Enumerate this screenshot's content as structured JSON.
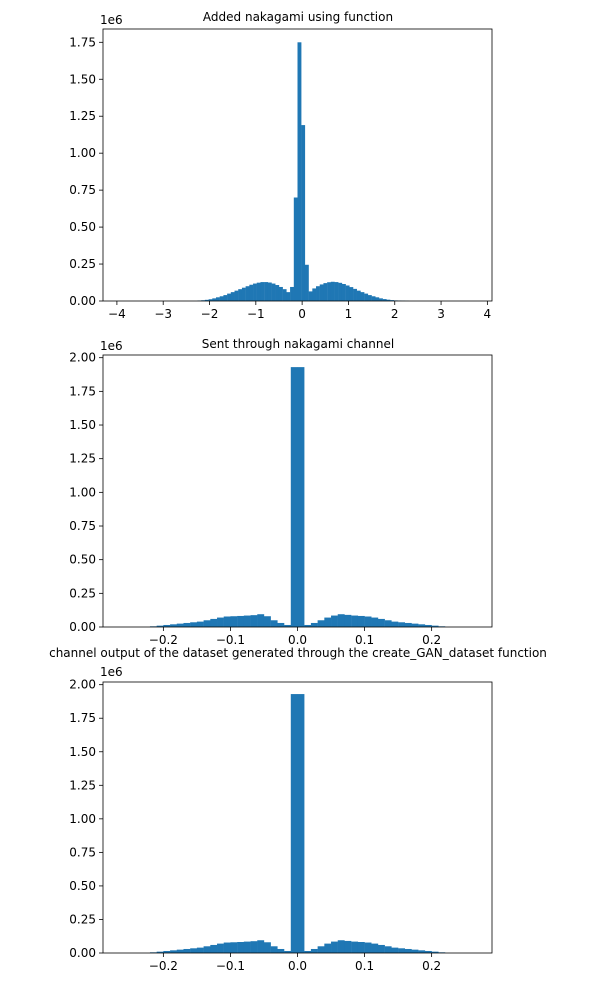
{
  "chart_data": [
    {
      "type": "histogram",
      "title": "Added nakagami using function",
      "xlabel": "",
      "ylabel": "",
      "x_ticks": [
        "−4",
        "−3",
        "−2",
        "−1",
        "0",
        "1",
        "2",
        "3",
        "4"
      ],
      "x_tick_values": [
        -4,
        -3,
        -2,
        -1,
        0,
        1,
        2,
        3,
        4
      ],
      "y_ticks": [
        "0.00",
        "0.25",
        "0.50",
        "0.75",
        "1.00",
        "1.25",
        "1.50",
        "1.75"
      ],
      "y_tick_values": [
        0,
        0.25,
        0.5,
        0.75,
        1.0,
        1.25,
        1.5,
        1.75
      ],
      "y_scale_label": "1e6",
      "xlim": [
        -4.3,
        4.1
      ],
      "ylim": [
        0,
        1.84
      ],
      "bar_color": "#1f77b4",
      "bin_width": 0.08,
      "bins_x": [
        -2.22,
        -2.14,
        -2.06,
        -1.98,
        -1.9,
        -1.82,
        -1.74,
        -1.66,
        -1.58,
        -1.5,
        -1.42,
        -1.34,
        -1.26,
        -1.18,
        -1.1,
        -1.02,
        -0.94,
        -0.86,
        -0.78,
        -0.7,
        -0.62,
        -0.54,
        -0.46,
        -0.38,
        -0.3,
        -0.22,
        -0.14,
        -0.06,
        0.02,
        0.1,
        0.18,
        0.26,
        0.34,
        0.42,
        0.5,
        0.58,
        0.66,
        0.74,
        0.82,
        0.9,
        0.98,
        1.06,
        1.14,
        1.22,
        1.3,
        1.38,
        1.46,
        1.54,
        1.62,
        1.7,
        1.78,
        1.86,
        1.94,
        2.02,
        2.1,
        2.18,
        2.26
      ],
      "values": [
        0.003,
        0.005,
        0.008,
        0.012,
        0.018,
        0.025,
        0.032,
        0.04,
        0.05,
        0.06,
        0.07,
        0.08,
        0.09,
        0.1,
        0.11,
        0.118,
        0.124,
        0.128,
        0.128,
        0.125,
        0.118,
        0.108,
        0.095,
        0.08,
        0.06,
        0.095,
        0.7,
        1.75,
        1.19,
        0.245,
        0.065,
        0.085,
        0.1,
        0.112,
        0.121,
        0.127,
        0.13,
        0.128,
        0.123,
        0.115,
        0.105,
        0.094,
        0.082,
        0.07,
        0.06,
        0.05,
        0.04,
        0.032,
        0.025,
        0.018,
        0.013,
        0.009,
        0.006,
        0.004,
        0.003,
        0.002,
        0.001
      ]
    },
    {
      "type": "histogram",
      "title": "Sent through nakagami channel",
      "xlabel": "",
      "ylabel": "",
      "x_ticks": [
        "−0.2",
        "−0.1",
        "0.0",
        "0.1",
        "0.2"
      ],
      "x_tick_values": [
        -0.2,
        -0.1,
        0.0,
        0.1,
        0.2
      ],
      "y_ticks": [
        "0.00",
        "0.25",
        "0.50",
        "0.75",
        "1.00",
        "1.25",
        "1.50",
        "1.75",
        "2.00"
      ],
      "y_tick_values": [
        0,
        0.25,
        0.5,
        0.75,
        1.0,
        1.25,
        1.5,
        1.75,
        2.0
      ],
      "y_scale_label": "1e6",
      "xlim": [
        -0.29,
        0.29
      ],
      "ylim": [
        0,
        2.02
      ],
      "bar_color": "#1f77b4",
      "bin_width": 0.01,
      "bins_x": [
        -0.215,
        -0.205,
        -0.195,
        -0.185,
        -0.175,
        -0.165,
        -0.155,
        -0.145,
        -0.135,
        -0.125,
        -0.115,
        -0.105,
        -0.095,
        -0.085,
        -0.075,
        -0.065,
        -0.055,
        -0.045,
        -0.035,
        -0.025,
        -0.015,
        -0.005,
        0.005,
        0.015,
        0.025,
        0.035,
        0.045,
        0.055,
        0.065,
        0.075,
        0.085,
        0.095,
        0.105,
        0.115,
        0.125,
        0.135,
        0.145,
        0.155,
        0.165,
        0.175,
        0.185,
        0.195,
        0.205,
        0.215
      ],
      "values": [
        0.005,
        0.01,
        0.015,
        0.02,
        0.025,
        0.03,
        0.035,
        0.04,
        0.05,
        0.06,
        0.07,
        0.078,
        0.08,
        0.082,
        0.085,
        0.088,
        0.095,
        0.08,
        0.05,
        0.03,
        0.015,
        1.93,
        1.93,
        0.015,
        0.03,
        0.05,
        0.07,
        0.085,
        0.095,
        0.09,
        0.085,
        0.082,
        0.078,
        0.07,
        0.06,
        0.05,
        0.04,
        0.035,
        0.03,
        0.025,
        0.02,
        0.015,
        0.01,
        0.005
      ]
    },
    {
      "type": "histogram",
      "title": "channel output of the dataset generated through the create_GAN_dataset function",
      "xlabel": "",
      "ylabel": "",
      "x_ticks": [
        "−0.2",
        "−0.1",
        "0.0",
        "0.1",
        "0.2"
      ],
      "x_tick_values": [
        -0.2,
        -0.1,
        0.0,
        0.1,
        0.2
      ],
      "y_ticks": [
        "0.00",
        "0.25",
        "0.50",
        "0.75",
        "1.00",
        "1.25",
        "1.50",
        "1.75",
        "2.00"
      ],
      "y_tick_values": [
        0,
        0.25,
        0.5,
        0.75,
        1.0,
        1.25,
        1.5,
        1.75,
        2.0
      ],
      "y_scale_label": "1e6",
      "xlim": [
        -0.29,
        0.29
      ],
      "ylim": [
        0,
        2.02
      ],
      "bar_color": "#1f77b4",
      "bin_width": 0.01,
      "bins_x": [
        -0.215,
        -0.205,
        -0.195,
        -0.185,
        -0.175,
        -0.165,
        -0.155,
        -0.145,
        -0.135,
        -0.125,
        -0.115,
        -0.105,
        -0.095,
        -0.085,
        -0.075,
        -0.065,
        -0.055,
        -0.045,
        -0.035,
        -0.025,
        -0.015,
        -0.005,
        0.005,
        0.015,
        0.025,
        0.035,
        0.045,
        0.055,
        0.065,
        0.075,
        0.085,
        0.095,
        0.105,
        0.115,
        0.125,
        0.135,
        0.145,
        0.155,
        0.165,
        0.175,
        0.185,
        0.195,
        0.205,
        0.215
      ],
      "values": [
        0.005,
        0.01,
        0.015,
        0.02,
        0.025,
        0.03,
        0.035,
        0.04,
        0.05,
        0.06,
        0.07,
        0.078,
        0.08,
        0.082,
        0.085,
        0.088,
        0.095,
        0.08,
        0.05,
        0.03,
        0.015,
        1.93,
        1.93,
        0.015,
        0.03,
        0.05,
        0.07,
        0.085,
        0.095,
        0.09,
        0.085,
        0.082,
        0.078,
        0.07,
        0.06,
        0.05,
        0.04,
        0.035,
        0.03,
        0.025,
        0.02,
        0.015,
        0.01,
        0.005
      ]
    }
  ]
}
